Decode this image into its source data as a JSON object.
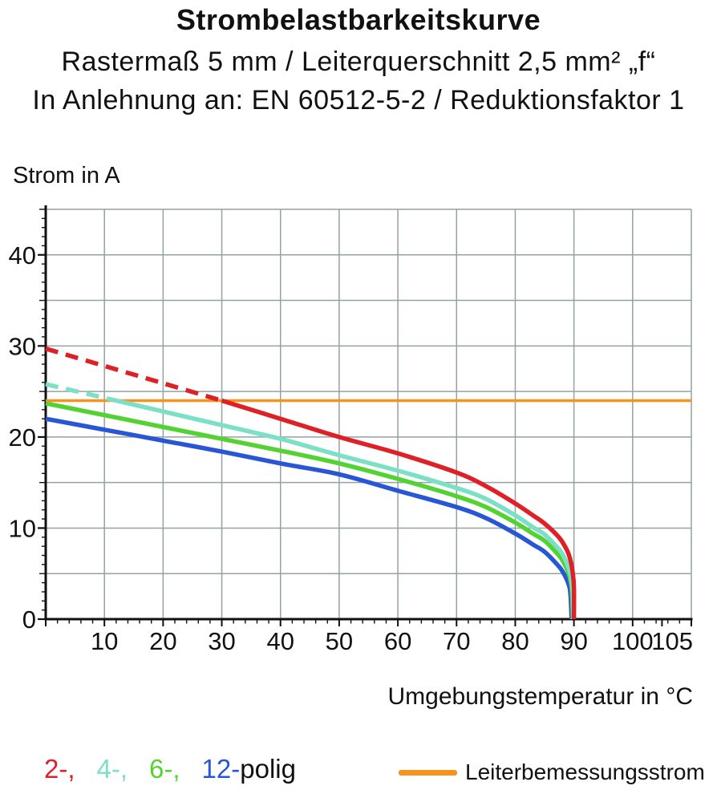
{
  "header": {
    "title": "Strombelastbarkeitskurve",
    "subtitle1": "Rastermaß 5 mm / Leiterquerschnitt 2,5 mm² „f“",
    "subtitle2": "In Anlehnung an: EN 60512-5-2 / Reduktionsfaktor 1"
  },
  "chart_data": {
    "type": "line",
    "title": "Strombelastbarkeitskurve",
    "xlabel": "Umgebungstemperatur in °C",
    "ylabel": "Strom in A",
    "xlim": [
      0,
      110
    ],
    "ylim": [
      0,
      45
    ],
    "x_ticks_labeled": [
      10,
      20,
      30,
      40,
      50,
      60,
      70,
      80,
      90,
      100,
      105
    ],
    "y_ticks_labeled": [
      0,
      10,
      20,
      30,
      40
    ],
    "x_grid_step": 10,
    "y_grid_step": 5,
    "x_minor_step": 2,
    "y_minor_step": 1,
    "grid_color": "#95a2a2",
    "axis_color": "#111111",
    "rated_current_A": 24,
    "series": [
      {
        "name": "Leiterbemessungsstrom",
        "color": "#f6921e",
        "width": 3.5,
        "points": [
          [
            0,
            24
          ],
          [
            110,
            24
          ]
        ]
      },
      {
        "name": "12-polig",
        "color": "#2856d4",
        "width": 5.5,
        "points": [
          [
            0,
            22.0
          ],
          [
            10,
            20.8
          ],
          [
            20,
            19.6
          ],
          [
            30,
            18.4
          ],
          [
            40,
            17.1
          ],
          [
            50,
            15.9
          ],
          [
            60,
            14.1
          ],
          [
            70,
            12.3
          ],
          [
            75,
            11.1
          ],
          [
            80,
            9.4
          ],
          [
            83,
            8.2
          ],
          [
            85,
            7.4
          ],
          [
            87,
            6.1
          ],
          [
            88,
            5.3
          ],
          [
            89,
            4.0
          ],
          [
            89.4,
            2.8
          ],
          [
            89.6,
            0
          ]
        ]
      },
      {
        "name": "6-polig",
        "color": "#55d233",
        "width": 5.5,
        "points": [
          [
            0,
            23.7
          ],
          [
            10,
            22.4
          ],
          [
            20,
            21.1
          ],
          [
            30,
            19.8
          ],
          [
            40,
            18.5
          ],
          [
            50,
            17.1
          ],
          [
            60,
            15.4
          ],
          [
            70,
            13.5
          ],
          [
            75,
            12.3
          ],
          [
            80,
            10.6
          ],
          [
            83,
            9.4
          ],
          [
            85,
            8.6
          ],
          [
            87,
            7.3
          ],
          [
            88,
            6.5
          ],
          [
            89,
            5.2
          ],
          [
            89.5,
            4.0
          ],
          [
            89.7,
            2.5
          ],
          [
            89.8,
            0
          ]
        ]
      },
      {
        "name": "4-polig",
        "color": "#7ce0c6",
        "width": 5.5,
        "dash_until": 12,
        "points": [
          [
            0,
            25.8
          ],
          [
            10,
            24.3
          ],
          [
            12,
            24.0
          ],
          [
            20,
            22.8
          ],
          [
            30,
            21.3
          ],
          [
            40,
            19.8
          ],
          [
            50,
            18.0
          ],
          [
            60,
            16.3
          ],
          [
            70,
            14.4
          ],
          [
            75,
            13.2
          ],
          [
            80,
            11.4
          ],
          [
            83,
            10.1
          ],
          [
            85,
            9.3
          ],
          [
            87,
            8.0
          ],
          [
            88,
            7.2
          ],
          [
            89,
            5.8
          ],
          [
            89.5,
            4.6
          ],
          [
            89.8,
            3.0
          ],
          [
            89.9,
            0
          ]
        ]
      },
      {
        "name": "2-polig",
        "color": "#dd2127",
        "width": 5.5,
        "dash_until": 30,
        "points": [
          [
            0,
            29.7
          ],
          [
            10,
            27.8
          ],
          [
            20,
            25.9
          ],
          [
            30,
            24.0
          ],
          [
            40,
            22.0
          ],
          [
            50,
            20.0
          ],
          [
            60,
            18.2
          ],
          [
            70,
            16.1
          ],
          [
            75,
            14.6
          ],
          [
            80,
            12.7
          ],
          [
            83,
            11.4
          ],
          [
            85,
            10.5
          ],
          [
            87,
            9.3
          ],
          [
            88,
            8.5
          ],
          [
            89,
            7.3
          ],
          [
            89.5,
            6.2
          ],
          [
            89.8,
            5.0
          ],
          [
            90,
            3.5
          ],
          [
            90,
            0
          ]
        ]
      }
    ],
    "legend_position": "bottom"
  },
  "legend": {
    "pole_items": [
      {
        "label": "2-,",
        "color": "#dd2127"
      },
      {
        "label": "4-,",
        "color": "#7ce0c6"
      },
      {
        "label": "6-,",
        "color": "#55d233"
      },
      {
        "label": "12-",
        "color": "#2856d4"
      }
    ],
    "polig_label": "polig",
    "rated_label": "Leiterbemessungsstrom",
    "rated_color": "#f6921e"
  }
}
